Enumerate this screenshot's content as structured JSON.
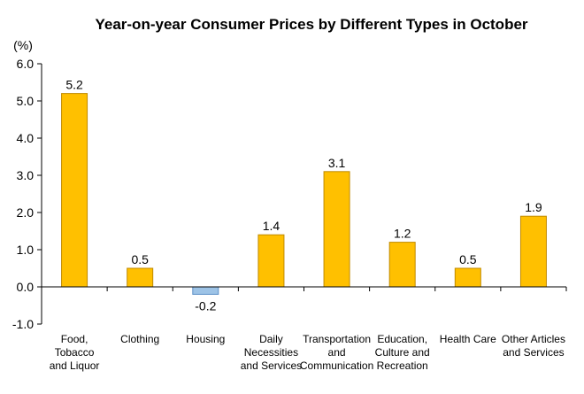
{
  "chart_data": {
    "type": "bar",
    "title": "Year-on-year Consumer Prices by Different Types in October",
    "ylabel": "(%)",
    "xlabel": "",
    "ylim": [
      -1.0,
      6.0
    ],
    "y_ticks": [
      "6.0",
      "5.0",
      "4.0",
      "3.0",
      "2.0",
      "1.0",
      "0.0",
      "-1.0"
    ],
    "grid": false,
    "legend": "none",
    "categories": [
      [
        "Food,",
        "Tobacco",
        "and Liquor"
      ],
      [
        "Clothing"
      ],
      [
        "Housing"
      ],
      [
        "Daily",
        "Necessities",
        "and Services"
      ],
      [
        "Transportation",
        "and",
        "Communication"
      ],
      [
        "Education,",
        "Culture and",
        "Recreation"
      ],
      [
        "Health Care"
      ],
      [
        "Other Articles",
        "and Services"
      ]
    ],
    "values": [
      5.2,
      0.5,
      -0.2,
      1.4,
      3.1,
      1.2,
      0.5,
      1.9
    ],
    "value_labels": [
      "5.2",
      "0.5",
      "-0.2",
      "1.4",
      "3.1",
      "1.2",
      "0.5",
      "1.9"
    ]
  },
  "colors": {
    "positive_fill": "#FFC000",
    "positive_stroke": "#C08A00",
    "negative_fill": "#9DC3E6",
    "negative_stroke": "#5B8FC7",
    "axis": "#000000",
    "text": "#000000"
  }
}
